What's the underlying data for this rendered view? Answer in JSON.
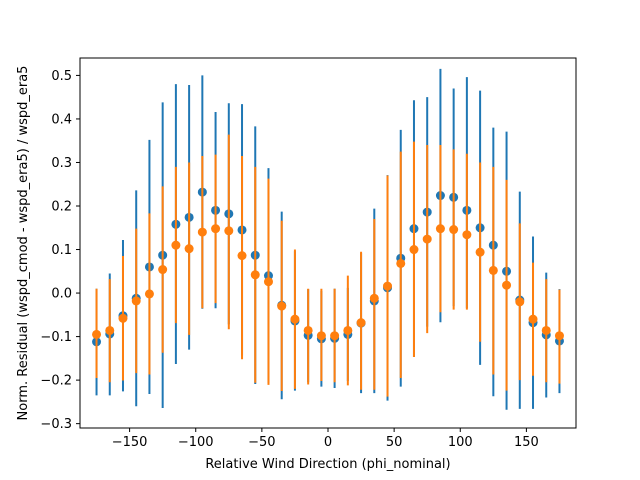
{
  "chart_data": {
    "type": "scatter",
    "xlabel": "Relative Wind Direction (phi_nominal)",
    "ylabel": "Norm. Residual (wspd_cmod - wspd_era5) / wspd_era5",
    "xlim": [
      -187.5,
      187.5
    ],
    "ylim": [
      -0.31,
      0.54
    ],
    "xticks": [
      -150,
      -100,
      -50,
      0,
      50,
      100,
      150
    ],
    "yticks": [
      -0.3,
      -0.2,
      -0.1,
      0.0,
      0.1,
      0.2,
      0.3,
      0.4,
      0.5
    ],
    "xtick_labels": [
      "−150",
      "−100",
      "−50",
      "0",
      "50",
      "100",
      "150"
    ],
    "ytick_labels": [
      "−0.3",
      "−0.2",
      "−0.1",
      "0.0",
      "0.1",
      "0.2",
      "0.3",
      "0.4",
      "0.5"
    ],
    "grid": false,
    "x": [
      -175,
      -165,
      -155,
      -145,
      -135,
      -125,
      -115,
      -105,
      -95,
      -85,
      -75,
      -65,
      -55,
      -45,
      -35,
      -25,
      -15,
      -5,
      5,
      15,
      25,
      35,
      45,
      55,
      65,
      75,
      85,
      95,
      105,
      115,
      125,
      135,
      145,
      155,
      165,
      175
    ],
    "series": [
      {
        "color": "#1f77b4",
        "y": [
          -0.112,
          -0.094,
          -0.052,
          -0.012,
          0.06,
          0.087,
          0.158,
          0.174,
          0.232,
          0.19,
          0.182,
          0.145,
          0.087,
          0.04,
          -0.028,
          -0.064,
          -0.097,
          -0.105,
          -0.104,
          -0.095,
          -0.069,
          -0.018,
          0.012,
          0.08,
          0.148,
          0.186,
          0.224,
          0.22,
          0.19,
          0.15,
          0.11,
          0.05,
          -0.016,
          -0.068,
          -0.096,
          -0.11
        ],
        "upper": [
          0.01,
          0.045,
          0.122,
          0.236,
          0.352,
          0.438,
          0.48,
          0.478,
          0.5,
          0.416,
          0.436,
          0.434,
          0.383,
          0.287,
          0.187,
          0.096,
          0.009,
          0.005,
          0.01,
          0.012,
          0.092,
          0.194,
          0.271,
          0.375,
          0.443,
          0.45,
          0.515,
          0.47,
          0.496,
          0.465,
          0.38,
          0.371,
          0.233,
          0.13,
          0.047,
          0.009
        ],
        "lower": [
          -0.235,
          -0.235,
          -0.226,
          -0.26,
          -0.232,
          -0.264,
          -0.163,
          -0.13,
          -0.036,
          -0.035,
          -0.072,
          -0.144,
          -0.209,
          -0.207,
          -0.244,
          -0.224,
          -0.205,
          -0.215,
          -0.218,
          -0.202,
          -0.23,
          -0.23,
          -0.247,
          -0.215,
          -0.147,
          -0.077,
          -0.067,
          -0.03,
          -0.035,
          -0.165,
          -0.237,
          -0.268,
          -0.266,
          -0.266,
          -0.24,
          -0.23
        ]
      },
      {
        "color": "#ff7f0e",
        "y": [
          -0.095,
          -0.086,
          -0.058,
          -0.018,
          -0.002,
          0.054,
          0.11,
          0.102,
          0.14,
          0.148,
          0.143,
          0.086,
          0.042,
          0.026,
          -0.03,
          -0.06,
          -0.086,
          -0.098,
          -0.098,
          -0.086,
          -0.068,
          -0.012,
          0.016,
          0.068,
          0.1,
          0.124,
          0.148,
          0.146,
          0.134,
          0.094,
          0.052,
          0.018,
          -0.02,
          -0.06,
          -0.086,
          -0.098
        ],
        "upper": [
          0.01,
          0.032,
          0.085,
          0.148,
          0.183,
          0.245,
          0.29,
          0.3,
          0.315,
          0.318,
          0.364,
          0.315,
          0.29,
          0.263,
          0.166,
          0.1,
          0.01,
          0.01,
          0.01,
          0.04,
          0.095,
          0.17,
          0.27,
          0.325,
          0.348,
          0.34,
          0.34,
          0.33,
          0.32,
          0.3,
          0.29,
          0.26,
          0.16,
          0.07,
          0.032,
          0.008
        ],
        "lower": [
          -0.195,
          -0.205,
          -0.201,
          -0.184,
          -0.187,
          -0.137,
          -0.069,
          -0.096,
          -0.035,
          -0.023,
          -0.083,
          -0.152,
          -0.206,
          -0.211,
          -0.225,
          -0.22,
          -0.21,
          -0.202,
          -0.205,
          -0.212,
          -0.222,
          -0.222,
          -0.238,
          -0.195,
          -0.147,
          -0.092,
          -0.044,
          -0.038,
          -0.038,
          -0.112,
          -0.187,
          -0.224,
          -0.2,
          -0.19,
          -0.205,
          -0.208
        ]
      }
    ]
  }
}
